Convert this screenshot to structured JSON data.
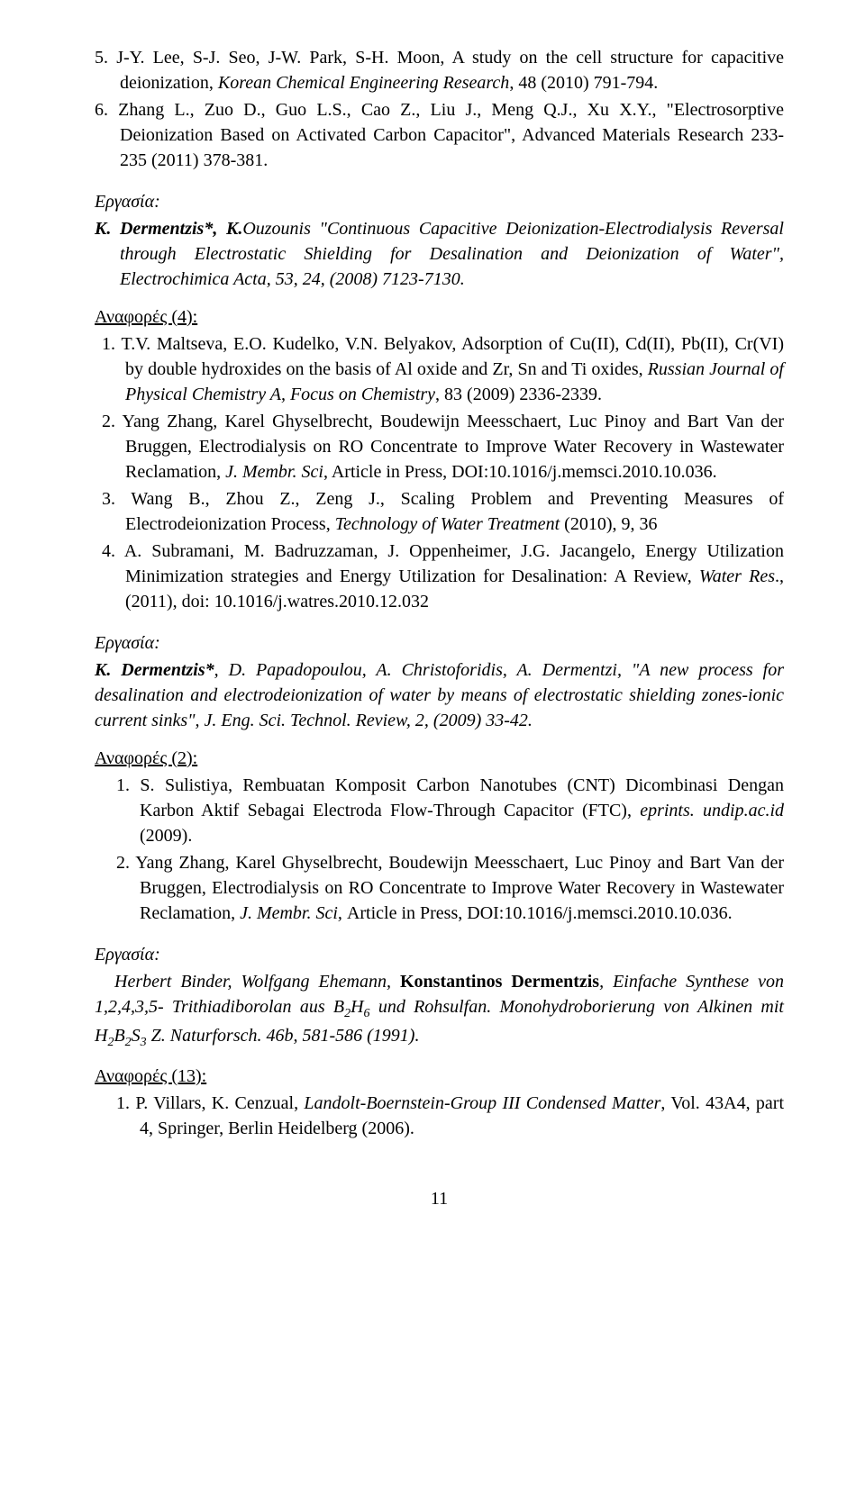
{
  "top_refs": [
    {
      "num": "5.",
      "text": "J-Y. Lee, S-J. Seo, J-W. Park, S-H. Moon, A study on the cell structure for capacitive deionization, ",
      "ital": "Korean Chemical Engineering Research",
      "tail": ", 48 (2010) 791-794."
    },
    {
      "num": "6.",
      "text": "Zhang L., Zuo D., Guo L.S., Cao Z., Liu J., Meng Q.J., Xu X.Y., \"Electrosorptive Deionization Based on Activated Carbon Capacitor\", Advanced Materials Research 233-235 (2011) 378-381.",
      "ital": "",
      "tail": ""
    }
  ],
  "work1": {
    "label": "Εργασία:",
    "line1_preBold": "",
    "line1_bold": "K. Dermentzis*, K.",
    "line1_postBold": "Ouzounis \"Continuous Capacitive Deionization-Electrodialysis Reversal through Electrostatic Shielding for Desalination and Deionization of Water\", Electrochimica Acta, 53, 24, (2008) 7123-7130."
  },
  "refs1_label": "Αναφορές (4):",
  "refs1": [
    {
      "num": "1.",
      "pre": "T.V. Maltseva, E.O. Kudelko, V.N. Belyakov, Adsorption of Cu(II), Cd(II), Pb(II), Cr(VI) by double hydroxides on the basis of Al oxide and Zr, Sn and Ti oxides, ",
      "ital": "Russian Journal of Physical Chemistry A, Focus on Chemistry",
      "post": ", 83 (2009) 2336-2339."
    },
    {
      "num": "2.",
      "pre": "Yang Zhang, Karel Ghyselbrecht, Boudewijn Meesschaert, Luc Pinoy and Bart Van der Bruggen, Electrodialysis on RO Concentrate to Improve Water Recovery in Wastewater Reclamation, ",
      "ital": "J. Membr. Sci",
      "post": ", Article in Press, DOI:10.1016/j.memsci.2010.10.036."
    },
    {
      "num": "3.",
      "pre": "Wang B., Zhou Z., Zeng J., Scaling Problem and Preventing Measures of Electrodeionization Process, ",
      "ital": "Technology of Water Treatment",
      "post": " (2010), 9, 36"
    },
    {
      "num": "4.",
      "pre": "A. Subramani, M. Badruzzaman, J. Oppenheimer, J.G. Jacangelo, Energy Utilization Minimization strategies and Energy Utilization for Desalination: A Review, ",
      "ital": "Water Res",
      "post": "., (2011), doi: 10.1016/j.watres.2010.12.032"
    }
  ],
  "work2": {
    "label": "Εργασία:",
    "bold": "K. Dermentzis*",
    "body_ital": ", D. Papadopoulou, A. Christoforidis, A. Dermentzi, \"A new process for desalination and electrodeionization of water by means of electrostatic shielding zones-ionic current sinks\", J. Eng. Sci. Technol. Review, 2, (2009) 33-42."
  },
  "refs2_label": "Αναφορές (2):",
  "refs2": [
    {
      "num": "1.",
      "pre": "S. Sulistiya, Rembuatan Komposit Carbon Nanotubes (CNT) Dicombinasi Dengan Karbon Aktif Sebagai Electroda Flow-Through Capacitor (FTC), ",
      "ital": "eprints. undip.ac.id ",
      "post": " (2009)."
    },
    {
      "num": "2.",
      "pre": "Yang Zhang, Karel Ghyselbrecht, Boudewijn Meesschaert, Luc Pinoy and Bart Van der Bruggen, Electrodialysis on RO Concentrate to Improve Water Recovery in Wastewater Reclamation, ",
      "ital": "J. Membr. Sci, ",
      "post": "Article in Press, DOI:10.1016/j.memsci.2010.10.036."
    }
  ],
  "work3": {
    "label": "Εργασία:",
    "pre": "Herbert Binder, Wolfgang Ehemann, ",
    "bold": "Konstantinos Dermentzis",
    "post1": ", Einfache Synthese von 1,2,4,3,5- Trithiadiborolan aus B",
    "sub1": "2",
    "mid1": "H",
    "sub2": "6",
    "mid2": " und Rohsulfan. Monohydroborierung von Alkinen mit H",
    "sub3": "2",
    "mid3": "B",
    "sub4": "2",
    "mid4": "S",
    "sub5": "3",
    "post2": " Z. Naturforsch. 46b, 581-586 (1991)."
  },
  "refs3_label": "Αναφορές (13):",
  "refs3": [
    {
      "num": "1.",
      "pre": "P. Villars, K. Cenzual, ",
      "ital": "Landolt-Boernstein-Group III Condensed Matter",
      "post": ", Vol. 43A4, part 4, Springer, Berlin Heidelberg (2006)."
    }
  ],
  "pagenum": "11",
  "colors": {
    "text": "#000000",
    "bg": "#ffffff"
  }
}
